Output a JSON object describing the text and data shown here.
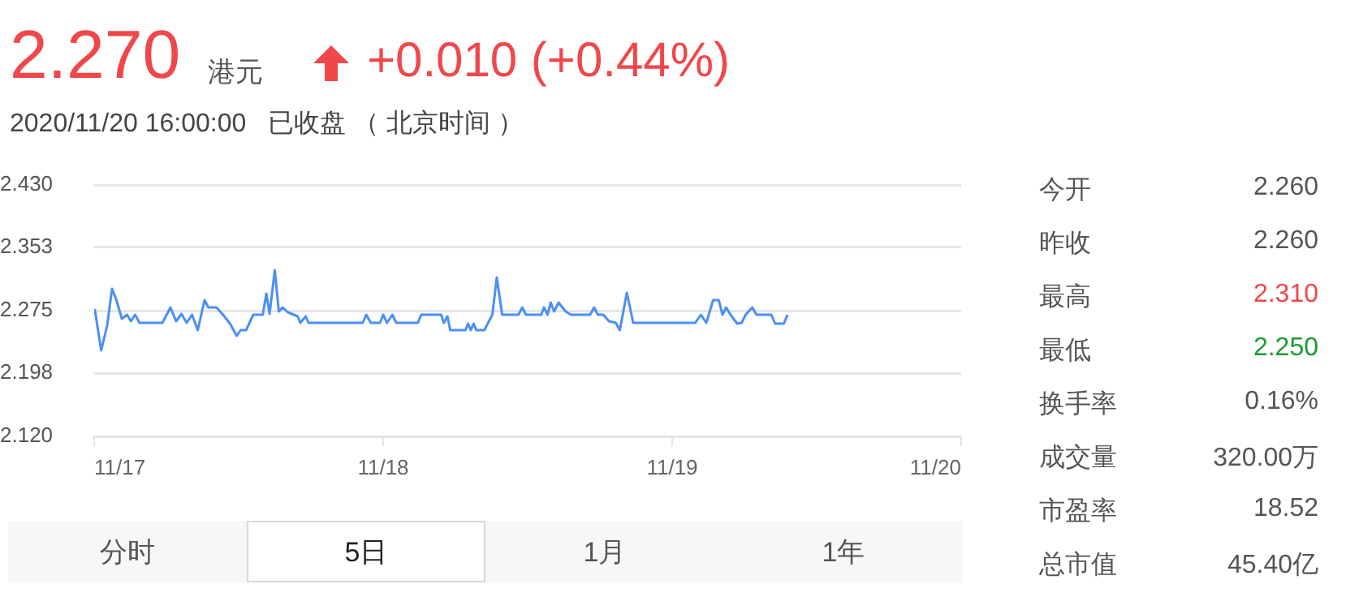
{
  "chart_data": {
    "type": "line",
    "title": "2.270",
    "subtitle": "2020/11/20 16:00:00   已收盘 （ 北京时间 ）",
    "annotations": [
      "港元",
      "+0.010 (+0.44%)",
      "今开",
      "2.260",
      "昨收",
      "2.260",
      "最高",
      "2.310",
      "最低",
      "2.250",
      "换手率",
      "0.16%",
      "成交量",
      "320.00万",
      "市盈率",
      "18.52",
      "总市值",
      "45.40亿",
      "分时",
      "5日",
      "1月",
      "1年"
    ],
    "xlim": [
      "2020-11-17",
      "2020-11-20"
    ],
    "xticks": [
      {
        "value": "2020-11-17",
        "label": "11/17"
      },
      {
        "value": "2020-11-18",
        "label": "11/18"
      },
      {
        "value": "2020-11-19",
        "label": "11/19"
      },
      {
        "value": "2020-11-20",
        "label": "11/20"
      }
    ],
    "ylim": [
      2.12,
      2.43
    ],
    "yticks": [
      {
        "value": 2.12,
        "label": "2.120"
      },
      2.198,
      2.275,
      2.353,
      {
        "value": 2.43,
        "label": "2.430"
      }
    ],
    "grid": "y",
    "legend": false,
    "marker": "none",
    "line_style": "solid",
    "series": [
      {
        "color": "#4a90f5",
        "x": [
          "2020-11-17T00:03",
          "2020-11-17T00:35",
          "2020-11-17T01:05",
          "2020-11-17T01:29",
          "2020-11-17T01:51",
          "2020-11-17T02:18",
          "2020-11-17T02:44",
          "2020-11-17T03:03",
          "2020-11-17T03:24",
          "2020-11-17T03:46",
          "2020-11-17T05:40",
          "2020-11-17T06:20",
          "2020-11-17T06:48",
          "2020-11-17T07:15",
          "2020-11-17T07:41",
          "2020-11-17T08:08",
          "2020-11-17T08:36",
          "2020-11-17T09:10",
          "2020-11-17T09:29",
          "2020-11-17T10:09",
          "2020-11-17T10:42",
          "2020-11-17T11:17",
          "2020-11-17T11:50",
          "2020-11-17T12:10",
          "2020-11-17T12:37",
          "2020-11-17T13:13",
          "2020-11-17T14:00",
          "2020-11-17T14:18",
          "2020-11-17T14:34",
          "2020-11-17T15:00",
          "2020-11-17T15:20",
          "2020-11-17T15:39",
          "2020-11-17T16:05",
          "2020-11-17T16:54",
          "2020-11-17T17:07",
          "2020-11-17T17:34",
          "2020-11-17T17:48",
          "2020-11-17T22:18",
          "2020-11-17T22:36",
          "2020-11-17T22:58",
          "2020-11-17T23:44",
          "2020-11-18T00:00",
          "2020-11-18T00:19",
          "2020-11-18T00:46",
          "2020-11-18T01:05",
          "2020-11-18T02:53",
          "2020-11-18T03:09",
          "2020-11-18T04:49",
          "2020-11-18T05:02",
          "2020-11-18T05:20",
          "2020-11-18T05:34",
          "2020-11-18T06:50",
          "2020-11-18T07:03",
          "2020-11-18T07:16",
          "2020-11-18T07:31",
          "2020-11-18T07:44",
          "2020-11-18T08:24",
          "2020-11-18T09:04",
          "2020-11-18T09:26",
          "2020-11-18T09:53",
          "2020-11-18T11:14",
          "2020-11-18T11:33",
          "2020-11-18T11:51",
          "2020-11-18T13:08",
          "2020-11-18T13:21",
          "2020-11-18T13:39",
          "2020-11-18T13:55",
          "2020-11-18T14:12",
          "2020-11-18T14:34",
          "2020-11-18T15:09",
          "2020-11-18T15:36",
          "2020-11-18T17:11",
          "2020-11-18T17:31",
          "2020-11-18T17:50",
          "2020-11-18T18:17",
          "2020-11-18T18:45",
          "2020-11-18T19:19",
          "2020-11-18T19:39",
          "2020-11-18T20:14",
          "2020-11-18T20:46",
          "2020-11-19T01:55",
          "2020-11-19T02:23",
          "2020-11-19T02:50",
          "2020-11-19T03:24",
          "2020-11-19T03:52",
          "2020-11-19T04:11",
          "2020-11-19T04:29",
          "2020-11-19T04:51",
          "2020-11-19T05:24",
          "2020-11-19T05:46",
          "2020-11-19T06:06",
          "2020-11-19T06:39",
          "2020-11-19T07:00",
          "2020-11-19T08:14",
          "2020-11-19T08:33",
          "2020-11-19T09:16",
          "2020-11-19T09:35"
        ],
        "values": [
          2.277,
          2.226,
          2.257,
          2.302,
          2.288,
          2.265,
          2.27,
          2.262,
          2.27,
          2.26,
          2.26,
          2.279,
          2.262,
          2.271,
          2.26,
          2.27,
          2.251,
          2.288,
          2.279,
          2.279,
          2.27,
          2.259,
          2.244,
          2.251,
          2.251,
          2.27,
          2.27,
          2.296,
          2.271,
          2.325,
          2.274,
          2.279,
          2.273,
          2.268,
          2.26,
          2.268,
          2.26,
          2.26,
          2.27,
          2.26,
          2.26,
          2.27,
          2.26,
          2.27,
          2.26,
          2.26,
          2.27,
          2.27,
          2.26,
          2.268,
          2.251,
          2.251,
          2.259,
          2.251,
          2.259,
          2.251,
          2.251,
          2.27,
          2.316,
          2.27,
          2.27,
          2.279,
          2.27,
          2.27,
          2.279,
          2.27,
          2.285,
          2.274,
          2.285,
          2.274,
          2.27,
          2.27,
          2.279,
          2.27,
          2.27,
          2.262,
          2.26,
          2.251,
          2.297,
          2.26,
          2.26,
          2.27,
          2.26,
          2.288,
          2.288,
          2.27,
          2.279,
          2.27,
          2.259,
          2.26,
          2.27,
          2.279,
          2.27,
          2.27,
          2.259,
          2.259,
          2.27
        ]
      }
    ]
  }
}
